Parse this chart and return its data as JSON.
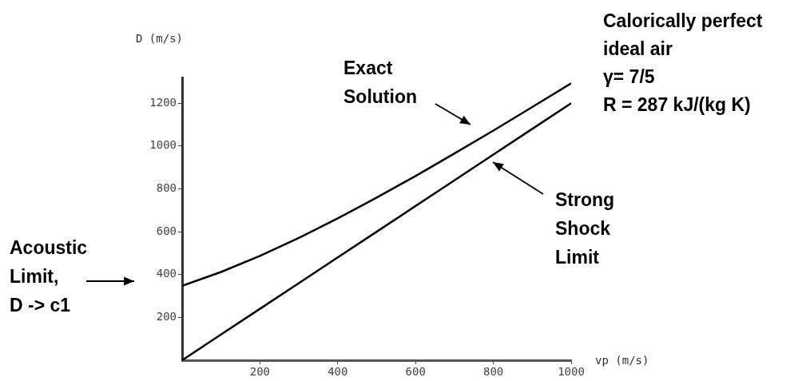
{
  "chart_data": {
    "type": "line",
    "xlabel": "vp (m/s)",
    "ylabel": "D (m/s)",
    "x": [
      0,
      100,
      200,
      300,
      400,
      500,
      600,
      700,
      800,
      900,
      1000
    ],
    "series": [
      {
        "color": "#000000",
        "values": [
          347,
          412,
          487,
          571,
          662,
          759,
          860,
          965,
          1072,
          1182,
          1293
        ]
      },
      {
        "color": "#000000",
        "values": [
          0,
          120,
          240,
          360,
          480,
          600,
          720,
          840,
          960,
          1080,
          1200
        ]
      }
    ],
    "xlim": [
      0,
      1000
    ],
    "ylim": [
      0,
      1320
    ],
    "xticks": [
      200,
      400,
      600,
      800,
      1000
    ],
    "yticks": [
      200,
      400,
      600,
      800,
      1000,
      1200
    ],
    "annotations": [
      "Exact\nSolution",
      "Strong\nShock\nLimit",
      "Acoustic\nLimit,\nD -> c1",
      "Calorically perfect\nideal air\nγ= 7/5\nR = 287 kJ/(kg K)"
    ],
    "grid": false,
    "legend": false,
    "marker": "none",
    "line_style": "solid"
  }
}
